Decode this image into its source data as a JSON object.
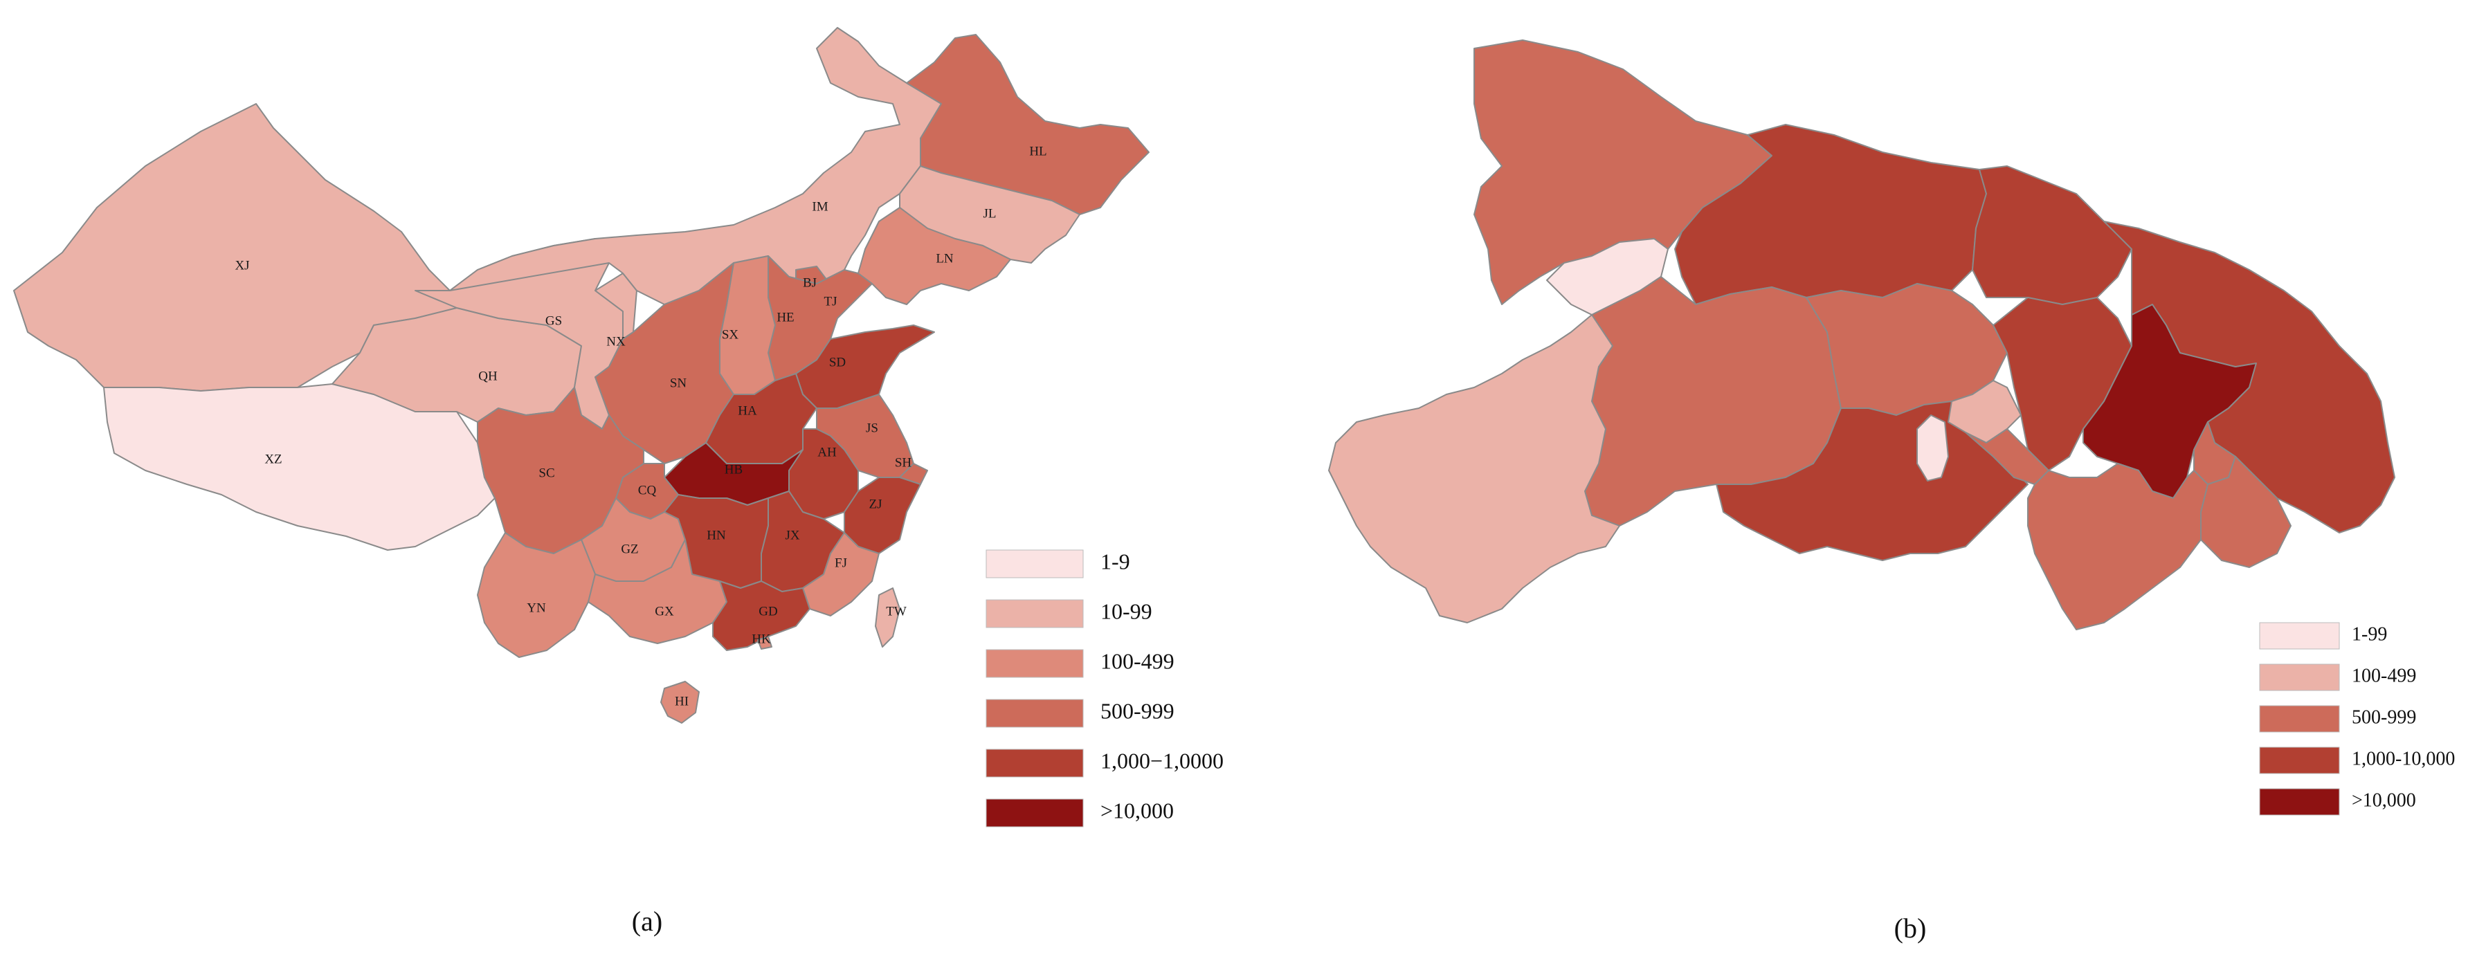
{
  "colors": {
    "c0": "#fbe3e3",
    "c1": "#ebb2a8",
    "c2": "#de8a7a",
    "c3": "#cd6b5a",
    "c4": "#b24032",
    "c5": "#8e1212",
    "border": "#8a8a8a"
  },
  "panel_a": {
    "caption": "(a)",
    "legend": [
      {
        "label": "1-9",
        "color": "c0"
      },
      {
        "label": "10-99",
        "color": "c1"
      },
      {
        "label": "100-499",
        "color": "c2"
      },
      {
        "label": "500-999",
        "color": "c3"
      },
      {
        "label": "1,000−1,0000",
        "color": "c4"
      },
      {
        "label": ">10,000",
        "color": "c5"
      }
    ],
    "provinces": [
      {
        "code": "XJ",
        "cls": 1
      },
      {
        "code": "XZ",
        "cls": 0
      },
      {
        "code": "QH",
        "cls": 1
      },
      {
        "code": "GS",
        "cls": 1
      },
      {
        "code": "NX",
        "cls": 1
      },
      {
        "code": "IM",
        "cls": 1
      },
      {
        "code": "HL",
        "cls": 3
      },
      {
        "code": "JL",
        "cls": 1
      },
      {
        "code": "LN",
        "cls": 2
      },
      {
        "code": "BJ",
        "cls": 3
      },
      {
        "code": "TJ",
        "cls": 2
      },
      {
        "code": "HE",
        "cls": 3
      },
      {
        "code": "SX",
        "cls": 2
      },
      {
        "code": "SN",
        "cls": 3
      },
      {
        "code": "SD",
        "cls": 4
      },
      {
        "code": "HA",
        "cls": 4
      },
      {
        "code": "JS",
        "cls": 3
      },
      {
        "code": "AH",
        "cls": 4
      },
      {
        "code": "SH",
        "cls": 3
      },
      {
        "code": "HB",
        "cls": 5
      },
      {
        "code": "CQ",
        "cls": 3
      },
      {
        "code": "SC",
        "cls": 3
      },
      {
        "code": "ZJ",
        "cls": 4
      },
      {
        "code": "HN",
        "cls": 4
      },
      {
        "code": "JX",
        "cls": 4
      },
      {
        "code": "FJ",
        "cls": 2
      },
      {
        "code": "GZ",
        "cls": 2
      },
      {
        "code": "YN",
        "cls": 2
      },
      {
        "code": "GX",
        "cls": 2
      },
      {
        "code": "GD",
        "cls": 4
      },
      {
        "code": "HK",
        "cls": 2
      },
      {
        "code": "HI",
        "cls": 2
      },
      {
        "code": "TW",
        "cls": 1
      }
    ]
  },
  "panel_b": {
    "caption": "(b)",
    "legend": [
      {
        "label": "1-99",
        "color": "c0"
      },
      {
        "label": "100-499",
        "color": "c1"
      },
      {
        "label": "500-999",
        "color": "c3"
      },
      {
        "label": "1,000-10,000",
        "color": "c4"
      },
      {
        "label": ">10,000",
        "color": "c5"
      }
    ]
  }
}
